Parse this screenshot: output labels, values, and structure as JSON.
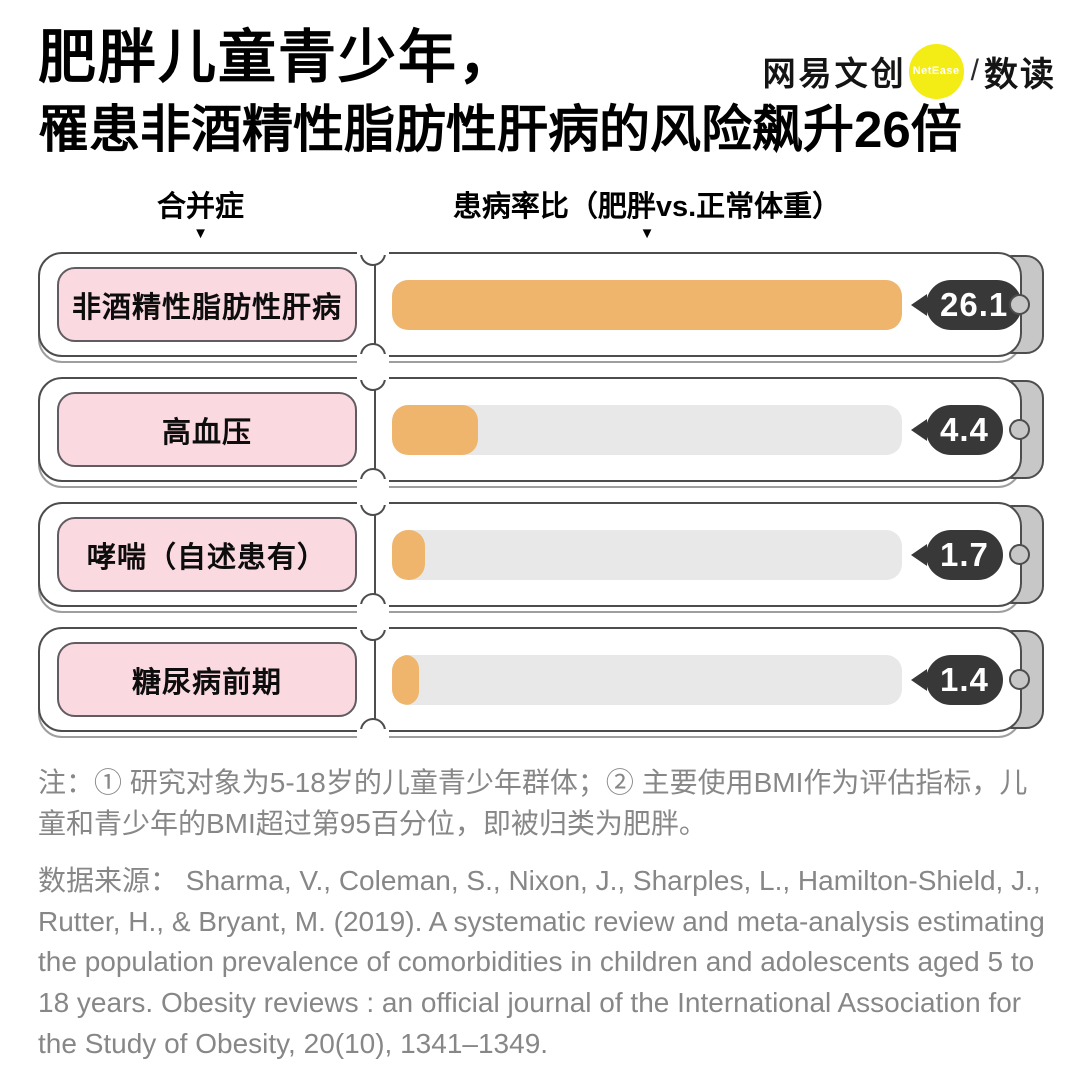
{
  "header": {
    "title_line1": "肥胖儿童青少年，",
    "title_line2": "罹患非酒精性脂肪性肝病的风险飙升26倍",
    "logo": {
      "brand": "网易文创",
      "badge": "NetEase",
      "separator": "/",
      "sub_brand": "数读",
      "badge_color": "#F4EC15"
    }
  },
  "columns": {
    "left_label": "合并症",
    "right_label": "患病率比（肥胖vs.正常体重）",
    "marker": "▼"
  },
  "chart_data": {
    "type": "bar",
    "orientation": "horizontal",
    "title": "肥胖儿童青少年，罹患非酒精性脂肪性肝病的风险飙升26倍",
    "xlabel": "患病率比（肥胖vs.正常体重）",
    "ylabel": "合并症",
    "categories": [
      "非酒精性脂肪性肝病",
      "高血压",
      "哮喘（自述患有）",
      "糖尿病前期"
    ],
    "values": [
      26.1,
      4.4,
      1.7,
      1.4
    ],
    "max_value": 26.1,
    "legend": "none",
    "grid": false,
    "colors": {
      "bar": "#EFB56C",
      "track": "#E8E8E8",
      "badge": "#383838",
      "label_bg": "#FBD9E1",
      "tab": "#C7C7C7"
    }
  },
  "footer": {
    "note": "注：① 研究对象为5-18岁的儿童青少年群体；② 主要使用BMI作为评估指标，儿童和青少年的BMI超过第95百分位，即被归类为肥胖。",
    "source": "数据来源： Sharma, V., Coleman, S., Nixon, J., Sharples, L., Hamilton-Shield, J., Rutter, H., & Bryant, M. (2019). A systematic review and meta-analysis estimating the population prevalence of comorbidities in children and adolescents aged 5 to 18 years. Obesity reviews : an official journal of the International Association for the Study of Obesity, 20(10), 1341–1349."
  }
}
